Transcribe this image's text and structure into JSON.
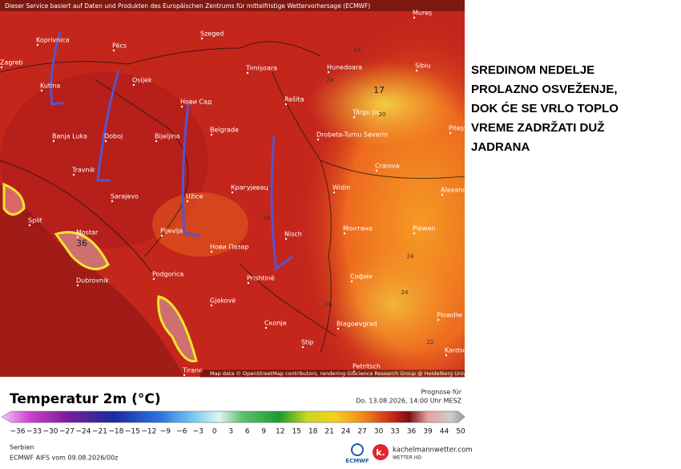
{
  "header": {
    "credit": "Dieser Service basiert auf Daten und Produkten des Europäischen Zentrums für mittelfristige Wettervorhersage (ECMWF)"
  },
  "map": {
    "cities": [
      "Mureș",
      "Koprivnica",
      "Pécs",
      "Szeged",
      "Zagreb",
      "Kutina",
      "Osijek",
      "Timișoara",
      "Hunedoara",
      "Sibiu",
      "Rešita",
      "Нови Сад",
      "Banja Luka",
      "Doboj",
      "Bijeljina",
      "Belgrade",
      "Târgu Jiu",
      "Pitești",
      "Drobeta-Turnu Severin",
      "Travnik",
      "Craiova",
      "Sarajevo",
      "Užice",
      "Крагујевац",
      "Widin",
      "Alexand",
      "Split",
      "Mostar",
      "Pljevlja",
      "Nisch",
      "Монтана",
      "Plewen",
      "Нови Пазар",
      "Dubrovnik",
      "Prishtinë",
      "София",
      "Podgorica",
      "Gjakovë",
      "Plowdiw",
      "Скопје",
      "Blagoevgrad",
      "Stip",
      "Kardsc",
      "Tirane",
      "Petritsch"
    ],
    "values": [
      "36",
      "17",
      "24",
      "20",
      "24",
      "28",
      "24",
      "26",
      "24",
      "22"
    ],
    "attribution": "Map data © OpenStreetMap contributors, rendering GIScience Research Group @ Heidelberg University"
  },
  "headline": [
    "SREDINOM NEDELJE",
    "PROLAZNO OSVEŽENJE,",
    "DOK ĆE SE VRLO TOPLO",
    "VREME ZADRŽATI DUŽ",
    "JADRANA"
  ],
  "legend": {
    "title": "Temperatur 2m (°C)",
    "forecast_label": "Prognose für",
    "forecast_time": "Do. 13.08.2026, 14:00 Uhr MESZ",
    "labels": [
      "−36",
      "−33",
      "−30",
      "−27",
      "−24",
      "−21",
      "−18",
      "−15",
      "−12",
      "−9",
      "−6",
      "−3",
      "0",
      "3",
      "6",
      "9",
      "12",
      "15",
      "18",
      "21",
      "24",
      "27",
      "30",
      "33",
      "36",
      "39",
      "44",
      "50"
    ]
  },
  "footer": {
    "region": "Serbien",
    "model_run": "ECMWF AIFS vom 09.08.2026/00z",
    "ecmwf_logo": "ECMWF",
    "brand": "kachelmannwetter.com",
    "brand_sub": "WETTER HD"
  }
}
